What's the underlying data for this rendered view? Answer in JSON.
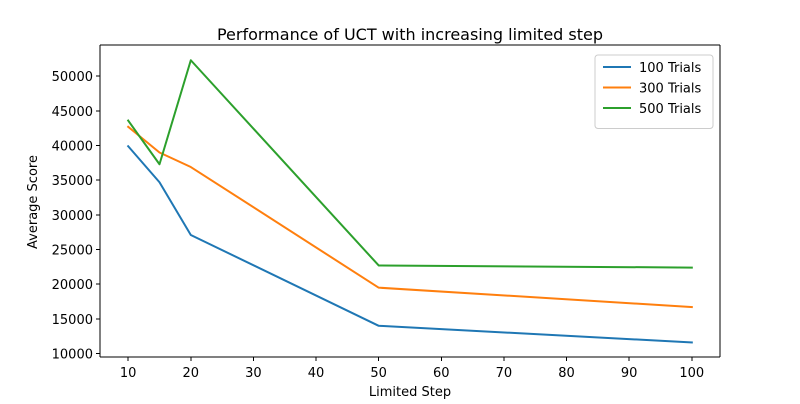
{
  "chart_data": {
    "type": "line",
    "title": "Performance of UCT with increasing limited step",
    "xlabel": "Limited Step",
    "ylabel": "Average Score",
    "x": [
      10,
      15,
      20,
      50,
      100
    ],
    "xticks": [
      10,
      20,
      30,
      40,
      50,
      60,
      70,
      80,
      90,
      100
    ],
    "yticks": [
      10000,
      15000,
      20000,
      25000,
      30000,
      35000,
      40000,
      45000,
      50000
    ],
    "xlim": [
      5.5,
      104.5
    ],
    "ylim": [
      9500,
      54500
    ],
    "grid": false,
    "legend_position": "top-right",
    "series": [
      {
        "name": "100 Trials",
        "color": "#1f77b4",
        "values": [
          39900,
          34700,
          27100,
          14000,
          11600
        ]
      },
      {
        "name": "300 Trials",
        "color": "#ff7f0e",
        "values": [
          42700,
          39000,
          36900,
          19500,
          16700
        ]
      },
      {
        "name": "500 Trials",
        "color": "#2ca02c",
        "values": [
          43600,
          37300,
          52300,
          22700,
          22400
        ]
      }
    ]
  }
}
